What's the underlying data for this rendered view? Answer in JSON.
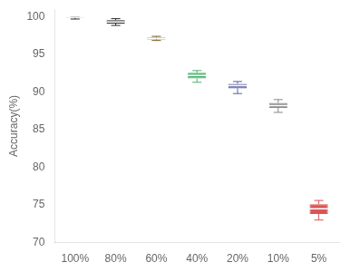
{
  "chart_data": {
    "type": "box",
    "categories": [
      "100%",
      "80%",
      "60%",
      "40%",
      "20%",
      "10%",
      "5%"
    ],
    "values": [
      {
        "whislo": 99.7,
        "q1": 99.88,
        "med": 99.95,
        "q3": 99.98,
        "whishi": 100.0
      },
      {
        "whislo": 98.85,
        "q1": 99.1,
        "med": 99.3,
        "q3": 99.55,
        "whishi": 99.75
      },
      {
        "whislo": 96.85,
        "q1": 97.0,
        "med": 97.15,
        "q3": 97.25,
        "whishi": 97.4
      },
      {
        "whislo": 91.3,
        "q1": 91.8,
        "med": 92.2,
        "q3": 92.55,
        "whishi": 92.85
      },
      {
        "whislo": 89.8,
        "q1": 90.5,
        "med": 90.85,
        "q3": 91.1,
        "whishi": 91.4
      },
      {
        "whislo": 87.3,
        "q1": 87.9,
        "med": 88.2,
        "q3": 88.55,
        "whishi": 89.0
      },
      {
        "whislo": 73.0,
        "q1": 73.8,
        "med": 74.5,
        "q3": 75.1,
        "whishi": 75.6
      }
    ],
    "colors": [
      "#2b2b2b",
      "#2b2b2b",
      "#7a6020",
      "#4caf6e",
      "#5a5f9e",
      "#888888",
      "#d95555"
    ],
    "ylabel": "Accuracy(%)",
    "ylim": [
      70,
      101
    ],
    "yticks": [
      70,
      75,
      80,
      85,
      90,
      95,
      100
    ],
    "grid": false
  }
}
